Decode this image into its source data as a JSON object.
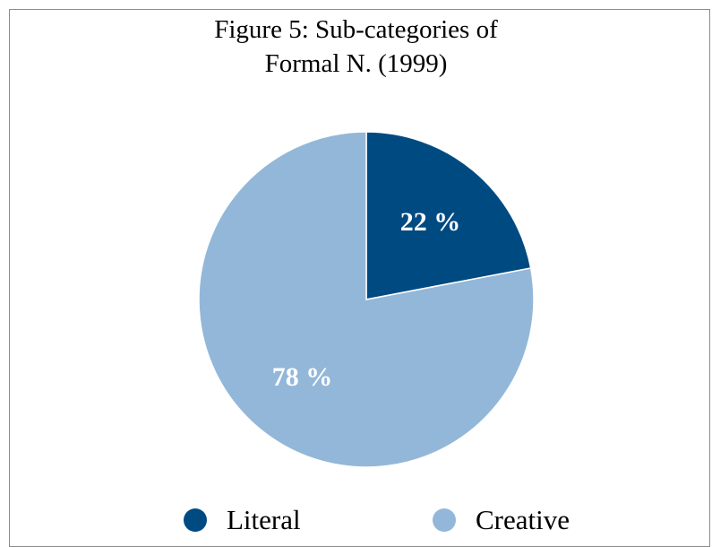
{
  "chart_data": {
    "type": "pie",
    "title_lines": [
      "Figure 5: Sub-categories of",
      "Formal N. (1999)"
    ],
    "categories": [
      "Literal",
      "Creative"
    ],
    "values": [
      22,
      78
    ],
    "labels": [
      "22 %",
      "78 %"
    ],
    "colors": [
      "#004a82",
      "#93b7d9"
    ],
    "legend_placement": "bottom"
  }
}
